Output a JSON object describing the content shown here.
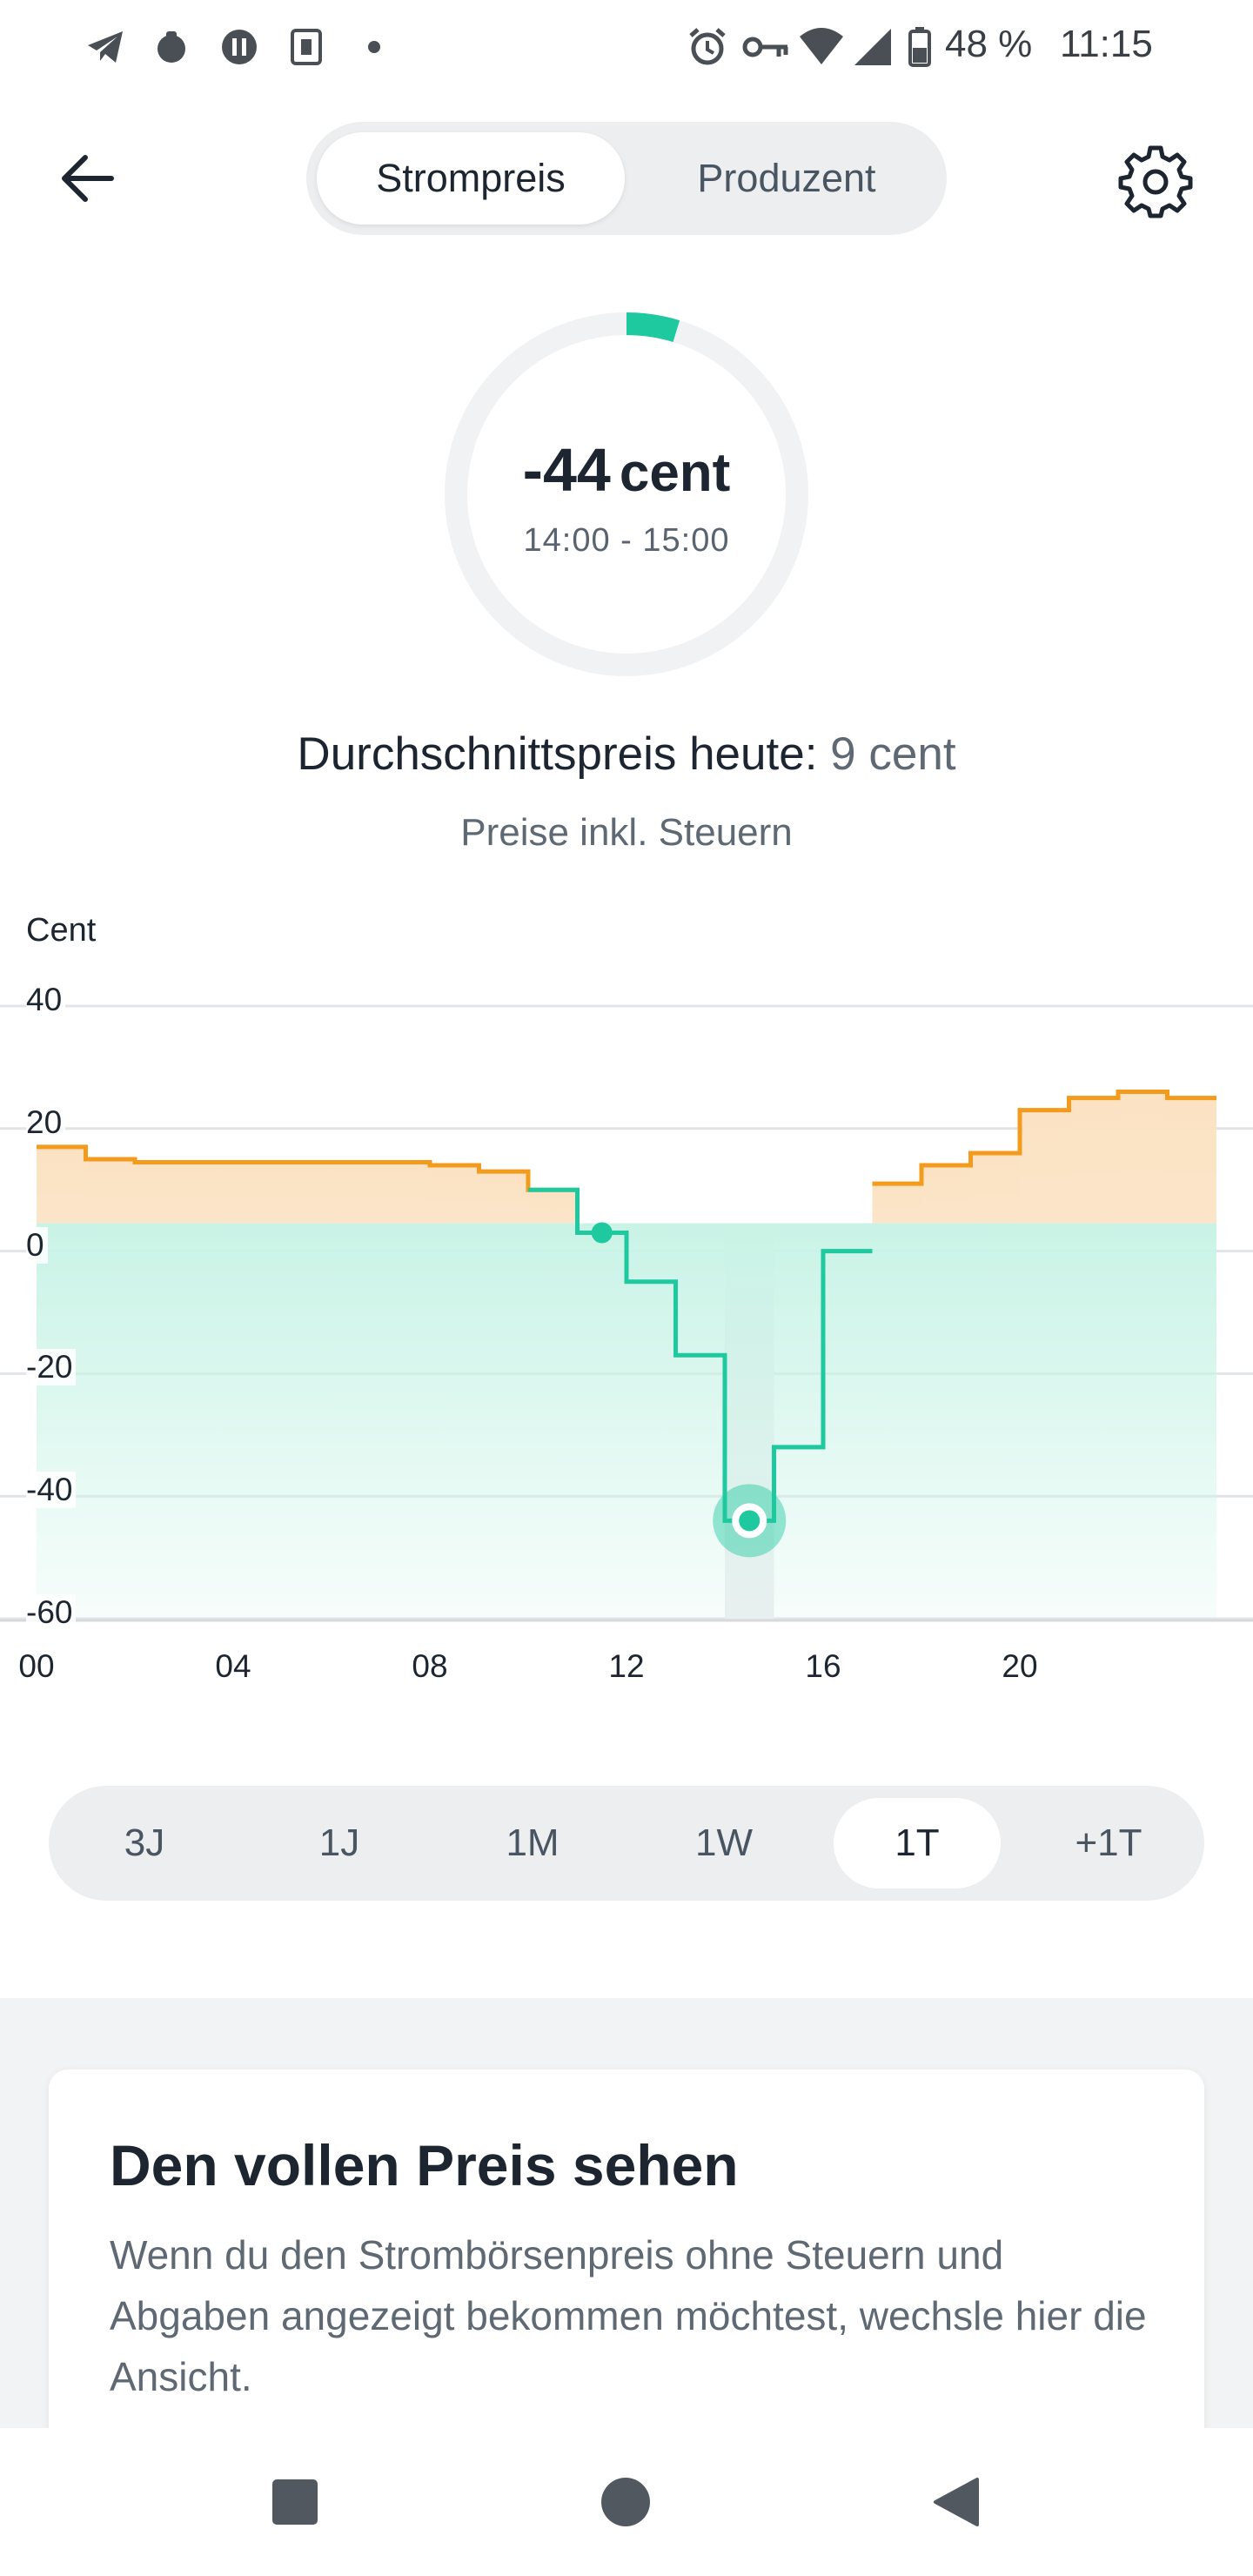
{
  "status_bar": {
    "battery": "48 %",
    "time": "11:15",
    "icons": [
      "telegram-icon",
      "app-icon",
      "app-icon",
      "app-icon",
      "dot-icon",
      "alarm-icon",
      "vpn-key-icon",
      "wifi-icon",
      "signal-icon",
      "battery-icon"
    ]
  },
  "header": {
    "tabs": [
      "Strompreis",
      "Produzent"
    ],
    "active_tab": "Strompreis",
    "back_icon": "arrow-left-icon",
    "settings_icon": "gear-icon"
  },
  "gauge": {
    "value": "-44",
    "unit": "cent",
    "time_range": "14:00 - 15:00",
    "accent": "#1ec9a0"
  },
  "summary": {
    "avg_label": "Durchschnittspreis heute:",
    "avg_value": "9 cent",
    "tax_note": "Preise inkl. Steuern"
  },
  "chart_data": {
    "type": "line",
    "ylabel": "Cent",
    "ylim": [
      -60,
      40
    ],
    "yticks": [
      "40",
      "20",
      "0",
      "-20",
      "-40",
      "-60"
    ],
    "xticks": [
      "00",
      "04",
      "08",
      "12",
      "16",
      "20"
    ],
    "x": [
      0,
      1,
      2,
      3,
      4,
      5,
      6,
      7,
      8,
      9,
      10,
      11,
      12,
      13,
      14,
      15,
      16,
      17,
      18,
      19,
      20,
      21,
      22,
      23,
      24
    ],
    "values": [
      17,
      15,
      14.5,
      14.5,
      14.5,
      14.5,
      14.5,
      14.5,
      14,
      13,
      10,
      3,
      -5,
      -17,
      -44,
      -32,
      0,
      11,
      14,
      16,
      23,
      25,
      26,
      25,
      25
    ],
    "selected_hour": 14,
    "current_hour": 11.5,
    "colors": {
      "positive": "#f29b1d",
      "negative": "#1ec9a0",
      "positive_fill": "#fbe2c3",
      "negative_fill": "#c9f3e6"
    },
    "grid": true
  },
  "range_selector": {
    "options": [
      "3J",
      "1J",
      "1M",
      "1W",
      "1T",
      "+1T"
    ],
    "active": "1T"
  },
  "card": {
    "title": "Den vollen Preis sehen",
    "text": "Wenn du den Strombörsenpreis ohne Steuern und Abgaben angezeigt bekommen möchtest, wechsle hier die Ansicht."
  },
  "nav": {
    "icons": [
      "recents-square-icon",
      "home-circle-icon",
      "back-triangle-icon"
    ]
  }
}
